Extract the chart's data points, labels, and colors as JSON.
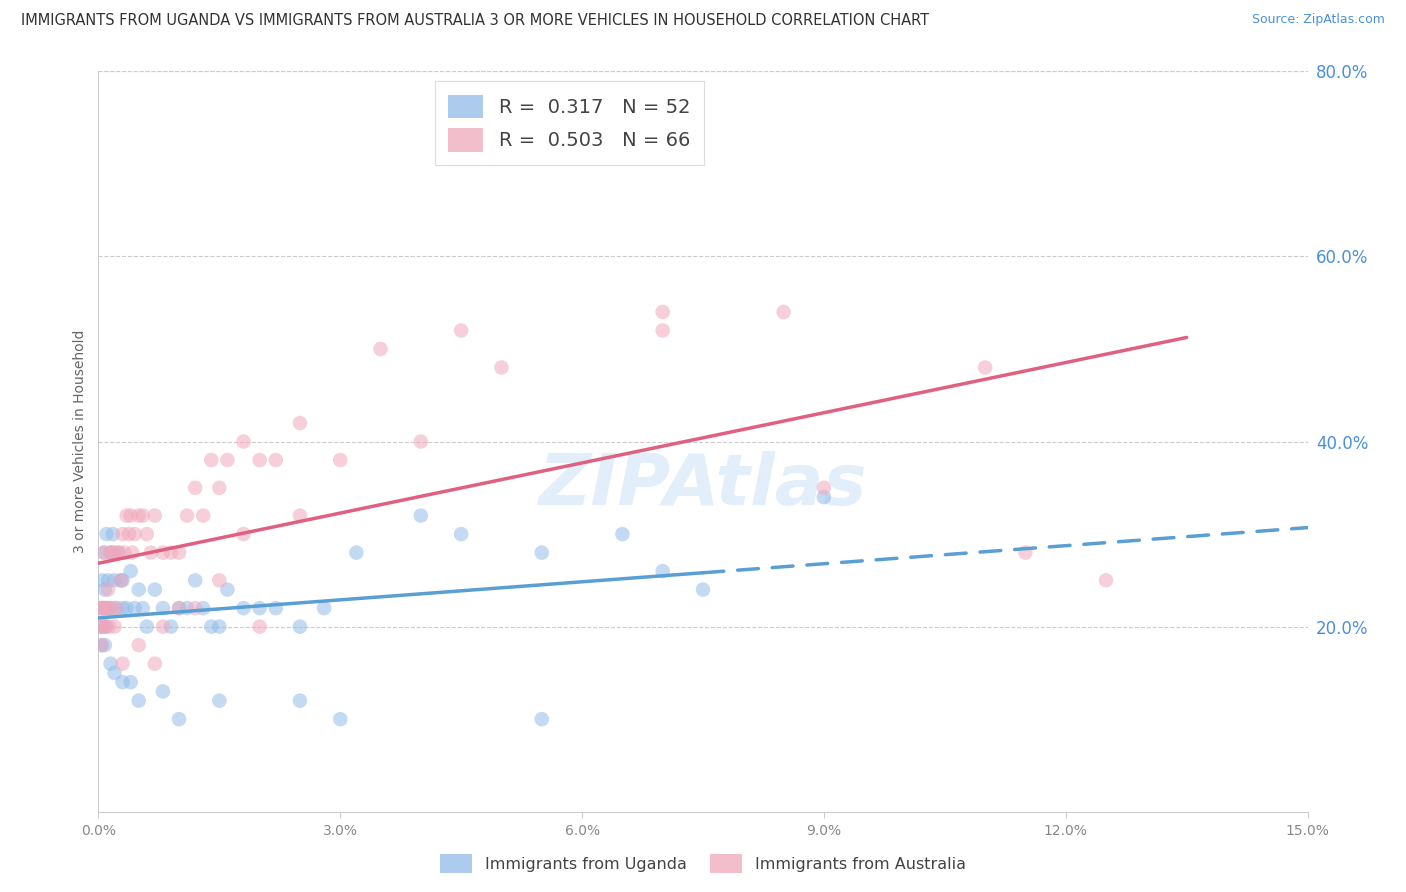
{
  "title": "IMMIGRANTS FROM UGANDA VS IMMIGRANTS FROM AUSTRALIA 3 OR MORE VEHICLES IN HOUSEHOLD CORRELATION CHART",
  "source": "Source: ZipAtlas.com",
  "ylabel": "3 or more Vehicles in Household",
  "xmin": 0.0,
  "xmax": 15.0,
  "ymin": 0.0,
  "ymax": 80.0,
  "right_yticks": [
    20.0,
    40.0,
    60.0,
    80.0
  ],
  "xticks": [
    0.0,
    3.0,
    6.0,
    9.0,
    12.0,
    15.0
  ],
  "uganda_color": "#92bce8",
  "uganda_line_color": "#5a9fd4",
  "australia_color": "#f0a8bc",
  "australia_line_color": "#e06080",
  "watermark": "ZIPAtlas",
  "watermark_color": "#d0e4f5",
  "legend_R_uganda": "0.317",
  "legend_N_uganda": "52",
  "legend_R_australia": "0.503",
  "legend_N_australia": "66",
  "uganda_x": [
    0.02,
    0.03,
    0.04,
    0.05,
    0.05,
    0.06,
    0.07,
    0.07,
    0.08,
    0.09,
    0.1,
    0.1,
    0.12,
    0.13,
    0.15,
    0.15,
    0.18,
    0.2,
    0.22,
    0.25,
    0.28,
    0.3,
    0.3,
    0.35,
    0.4,
    0.45,
    0.5,
    0.55,
    0.6,
    0.7,
    0.8,
    0.9,
    1.0,
    1.1,
    1.2,
    1.3,
    1.4,
    1.5,
    1.6,
    1.8,
    2.0,
    2.2,
    2.5,
    2.8,
    3.2,
    4.0,
    4.5,
    5.5,
    6.5,
    7.0,
    7.5,
    9.0
  ],
  "uganda_y": [
    20,
    22,
    18,
    25,
    22,
    20,
    28,
    22,
    24,
    20,
    30,
    22,
    25,
    22,
    28,
    22,
    30,
    25,
    22,
    28,
    25,
    25,
    22,
    22,
    26,
    22,
    24,
    22,
    20,
    24,
    22,
    20,
    22,
    22,
    25,
    22,
    20,
    20,
    24,
    22,
    22,
    22,
    20,
    22,
    28,
    32,
    30,
    28,
    30,
    26,
    24,
    34
  ],
  "uganda_y_extra": [
    18,
    16,
    14,
    12,
    10,
    12,
    15,
    14,
    13,
    12,
    10,
    10
  ],
  "uganda_x_extra": [
    0.08,
    0.15,
    0.3,
    0.5,
    1.0,
    2.5,
    0.2,
    0.4,
    0.8,
    1.5,
    3.0,
    5.5
  ],
  "australia_x": [
    0.02,
    0.03,
    0.04,
    0.05,
    0.06,
    0.07,
    0.08,
    0.09,
    0.1,
    0.12,
    0.13,
    0.15,
    0.16,
    0.18,
    0.2,
    0.22,
    0.25,
    0.28,
    0.3,
    0.32,
    0.35,
    0.38,
    0.4,
    0.42,
    0.45,
    0.5,
    0.55,
    0.6,
    0.65,
    0.7,
    0.8,
    0.9,
    1.0,
    1.1,
    1.2,
    1.3,
    1.4,
    1.5,
    1.6,
    1.8,
    2.0,
    2.2,
    2.5,
    3.0,
    3.5,
    4.5,
    5.0,
    7.0,
    8.5,
    11.0,
    12.5,
    1.0,
    1.5,
    2.0,
    0.3,
    0.5,
    0.7,
    1.2,
    1.8,
    2.5,
    4.0,
    7.0,
    9.0,
    11.5,
    0.2,
    0.8
  ],
  "australia_y": [
    20,
    22,
    18,
    22,
    20,
    28,
    22,
    20,
    22,
    24,
    20,
    28,
    22,
    28,
    28,
    22,
    28,
    25,
    30,
    28,
    32,
    30,
    32,
    28,
    30,
    32,
    32,
    30,
    28,
    32,
    28,
    28,
    28,
    32,
    35,
    32,
    38,
    35,
    38,
    40,
    38,
    38,
    42,
    38,
    50,
    52,
    48,
    54,
    54,
    48,
    25,
    22,
    25,
    20,
    16,
    18,
    16,
    22,
    30,
    32,
    40,
    52,
    35,
    28,
    20,
    20
  ]
}
